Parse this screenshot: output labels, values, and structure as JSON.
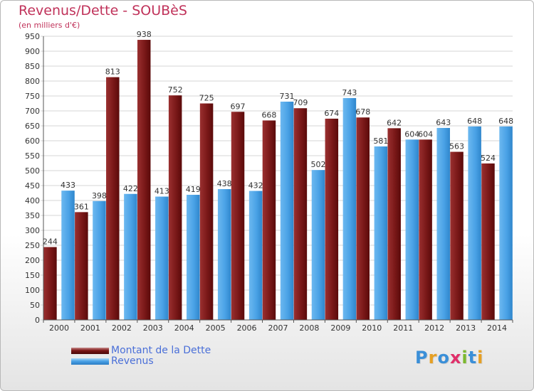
{
  "title": "Revenus/Dette - SOUBèS",
  "subtitle": "(en milliers d'€)",
  "colors": {
    "dette": "#7a1515",
    "revenus": "#4aa2e6",
    "title": "#c0325a",
    "legend_text": "#4a6fd8"
  },
  "legend": {
    "dette_label": "Montant de la Dette",
    "revenus_label": "Revenus"
  },
  "logo": {
    "letters": [
      "P",
      "r",
      "o",
      "x",
      "i",
      "t",
      "i"
    ],
    "colors": [
      "#3a8fd8",
      "#e6a024",
      "#3a8fd8",
      "#e0306a",
      "#7cb82f",
      "#3a8fd8",
      "#e6a024"
    ]
  },
  "chart_data": {
    "type": "bar",
    "categories": [
      "2000",
      "2001",
      "2002",
      "2003",
      "2004",
      "2005",
      "2006",
      "2007",
      "2008",
      "2009",
      "2010",
      "2011",
      "2012",
      "2013",
      "2014"
    ],
    "series": [
      {
        "name": "Montant de la Dette",
        "values": [
          244,
          361,
          813,
          938,
          752,
          725,
          697,
          668,
          709,
          674,
          678,
          642,
          604,
          563,
          524
        ]
      },
      {
        "name": "Revenus",
        "values": [
          433,
          398,
          422,
          413,
          419,
          438,
          432,
          731,
          502,
          743,
          581,
          604,
          643,
          648,
          648
        ]
      }
    ],
    "data_labels": {
      "dette": [
        "244",
        "361",
        "813",
        "938",
        "752",
        "725",
        "697",
        "668",
        "709",
        "674",
        "678",
        "642",
        "604",
        "563",
        "524"
      ],
      "revenus": [
        "433",
        "398",
        "422",
        "413",
        "419",
        "438",
        "432",
        "731",
        "502",
        "743",
        "581",
        "604",
        "643",
        "648",
        "648"
      ]
    },
    "ylim": [
      0,
      950
    ],
    "yticks": [
      "0",
      "50",
      "100",
      "150",
      "200",
      "250",
      "300",
      "350",
      "400",
      "450",
      "500",
      "550",
      "600",
      "650",
      "700",
      "750",
      "800",
      "850",
      "900",
      "950"
    ],
    "grid": true,
    "legend_position": "bottom-left"
  }
}
